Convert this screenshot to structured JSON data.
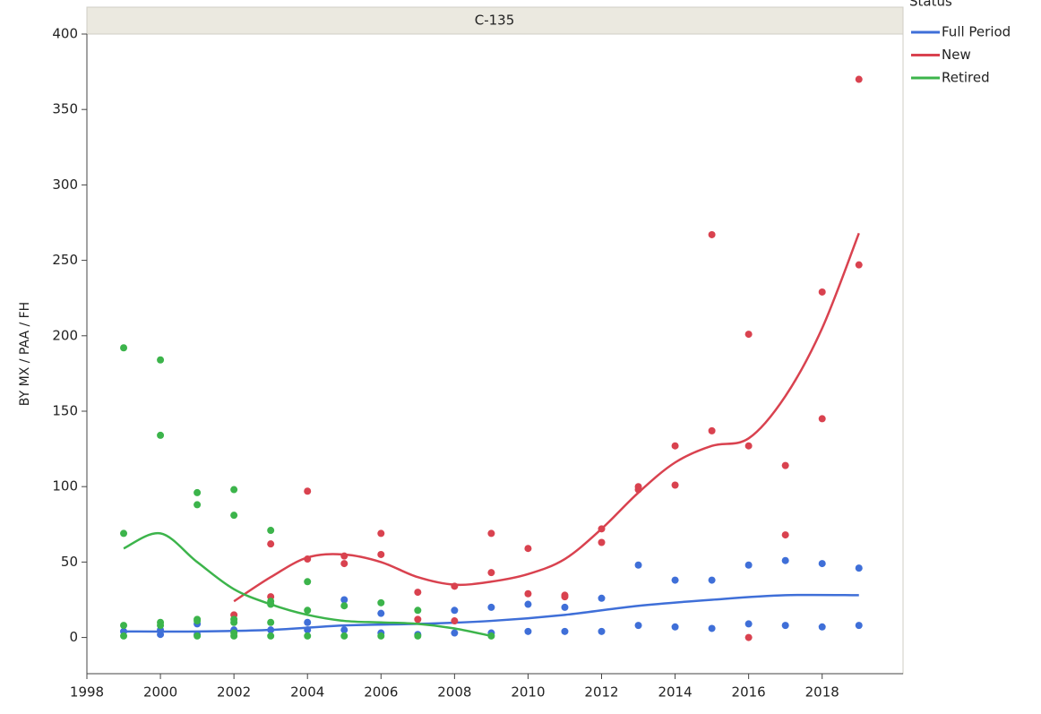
{
  "chart_data": {
    "type": "scatter",
    "panel_title": "C-135",
    "y_label": "BY MX / PAA / FH",
    "legend_title": "Status",
    "xlim": [
      1998,
      2020.2
    ],
    "xticks": [
      1998,
      2000,
      2002,
      2004,
      2006,
      2008,
      2010,
      2012,
      2014,
      2016,
      2018
    ],
    "ylim": [
      -24,
      400
    ],
    "yticks": [
      0,
      50,
      100,
      150,
      200,
      250,
      300,
      350,
      400
    ],
    "series": [
      {
        "name": "Full Period",
        "color": "#3f6fd8",
        "x": [
          1999,
          2000,
          2000,
          2001,
          2001,
          2002,
          2003,
          2004,
          2004,
          2005,
          2005,
          2006,
          2006,
          2007,
          2008,
          2008,
          2009,
          2009,
          2010,
          2010,
          2011,
          2011,
          2012,
          2012,
          2013,
          2013,
          2014,
          2014,
          2015,
          2015,
          2016,
          2016,
          2017,
          2017,
          2018,
          2018,
          2019,
          2019
        ],
        "values": [
          4,
          2,
          5,
          9,
          2,
          5,
          5,
          10,
          5,
          25,
          5,
          16,
          3,
          2,
          18,
          3,
          20,
          3,
          22,
          4,
          20,
          4,
          26,
          4,
          48,
          8,
          38,
          7,
          38,
          6,
          48,
          9,
          51,
          8,
          49,
          7,
          46,
          8
        ],
        "fit_x": [
          1999,
          2001,
          2003,
          2005,
          2007,
          2009,
          2011,
          2013,
          2015,
          2017,
          2019
        ],
        "fit_values": [
          4,
          4,
          5,
          8,
          9,
          11,
          15,
          21,
          25,
          28,
          28
        ]
      },
      {
        "name": "New",
        "color": "#d9424f",
        "x": [
          2002,
          2003,
          2003,
          2004,
          2004,
          2005,
          2005,
          2006,
          2006,
          2007,
          2007,
          2008,
          2008,
          2009,
          2009,
          2010,
          2010,
          2011,
          2011,
          2012,
          2012,
          2013,
          2013,
          2014,
          2014,
          2015,
          2015,
          2016,
          2016,
          2016,
          2017,
          2017,
          2018,
          2018,
          2019,
          2019
        ],
        "values": [
          15,
          62,
          27,
          97,
          52,
          54,
          49,
          69,
          55,
          30,
          12,
          34,
          11,
          69,
          43,
          59,
          29,
          28,
          27,
          72,
          63,
          100,
          98,
          127,
          101,
          267,
          137,
          201,
          127,
          0,
          114,
          68,
          229,
          145,
          370,
          247
        ],
        "fit_x": [
          2002,
          2003,
          2004,
          2005,
          2006,
          2007,
          2008,
          2009,
          2010,
          2011,
          2012,
          2013,
          2014,
          2015,
          2016,
          2017,
          2018,
          2019
        ],
        "fit_values": [
          24,
          40,
          53,
          55,
          50,
          40,
          35,
          37,
          42,
          52,
          72,
          96,
          116,
          127,
          132,
          160,
          205,
          268
        ]
      },
      {
        "name": "Retired",
        "color": "#3cb44b",
        "x": [
          1999,
          1999,
          1999,
          1999,
          2000,
          2000,
          2000,
          2000,
          2001,
          2001,
          2001,
          2001,
          2001,
          2002,
          2002,
          2002,
          2002,
          2002,
          2002,
          2003,
          2003,
          2003,
          2003,
          2003,
          2004,
          2004,
          2004,
          2005,
          2005,
          2006,
          2006,
          2007,
          2007,
          2009
        ],
        "values": [
          192,
          69,
          8,
          1,
          184,
          134,
          10,
          8,
          96,
          88,
          12,
          11,
          1,
          98,
          81,
          12,
          10,
          3,
          1,
          71,
          24,
          22,
          10,
          1,
          37,
          18,
          1,
          21,
          1,
          23,
          1,
          18,
          1,
          1
        ],
        "fit_x": [
          1999,
          2000,
          2001,
          2002,
          2003,
          2004,
          2005,
          2006,
          2007,
          2008,
          2009
        ],
        "fit_values": [
          59,
          69,
          50,
          32,
          22,
          15,
          11,
          10,
          9,
          6,
          1
        ]
      }
    ]
  }
}
